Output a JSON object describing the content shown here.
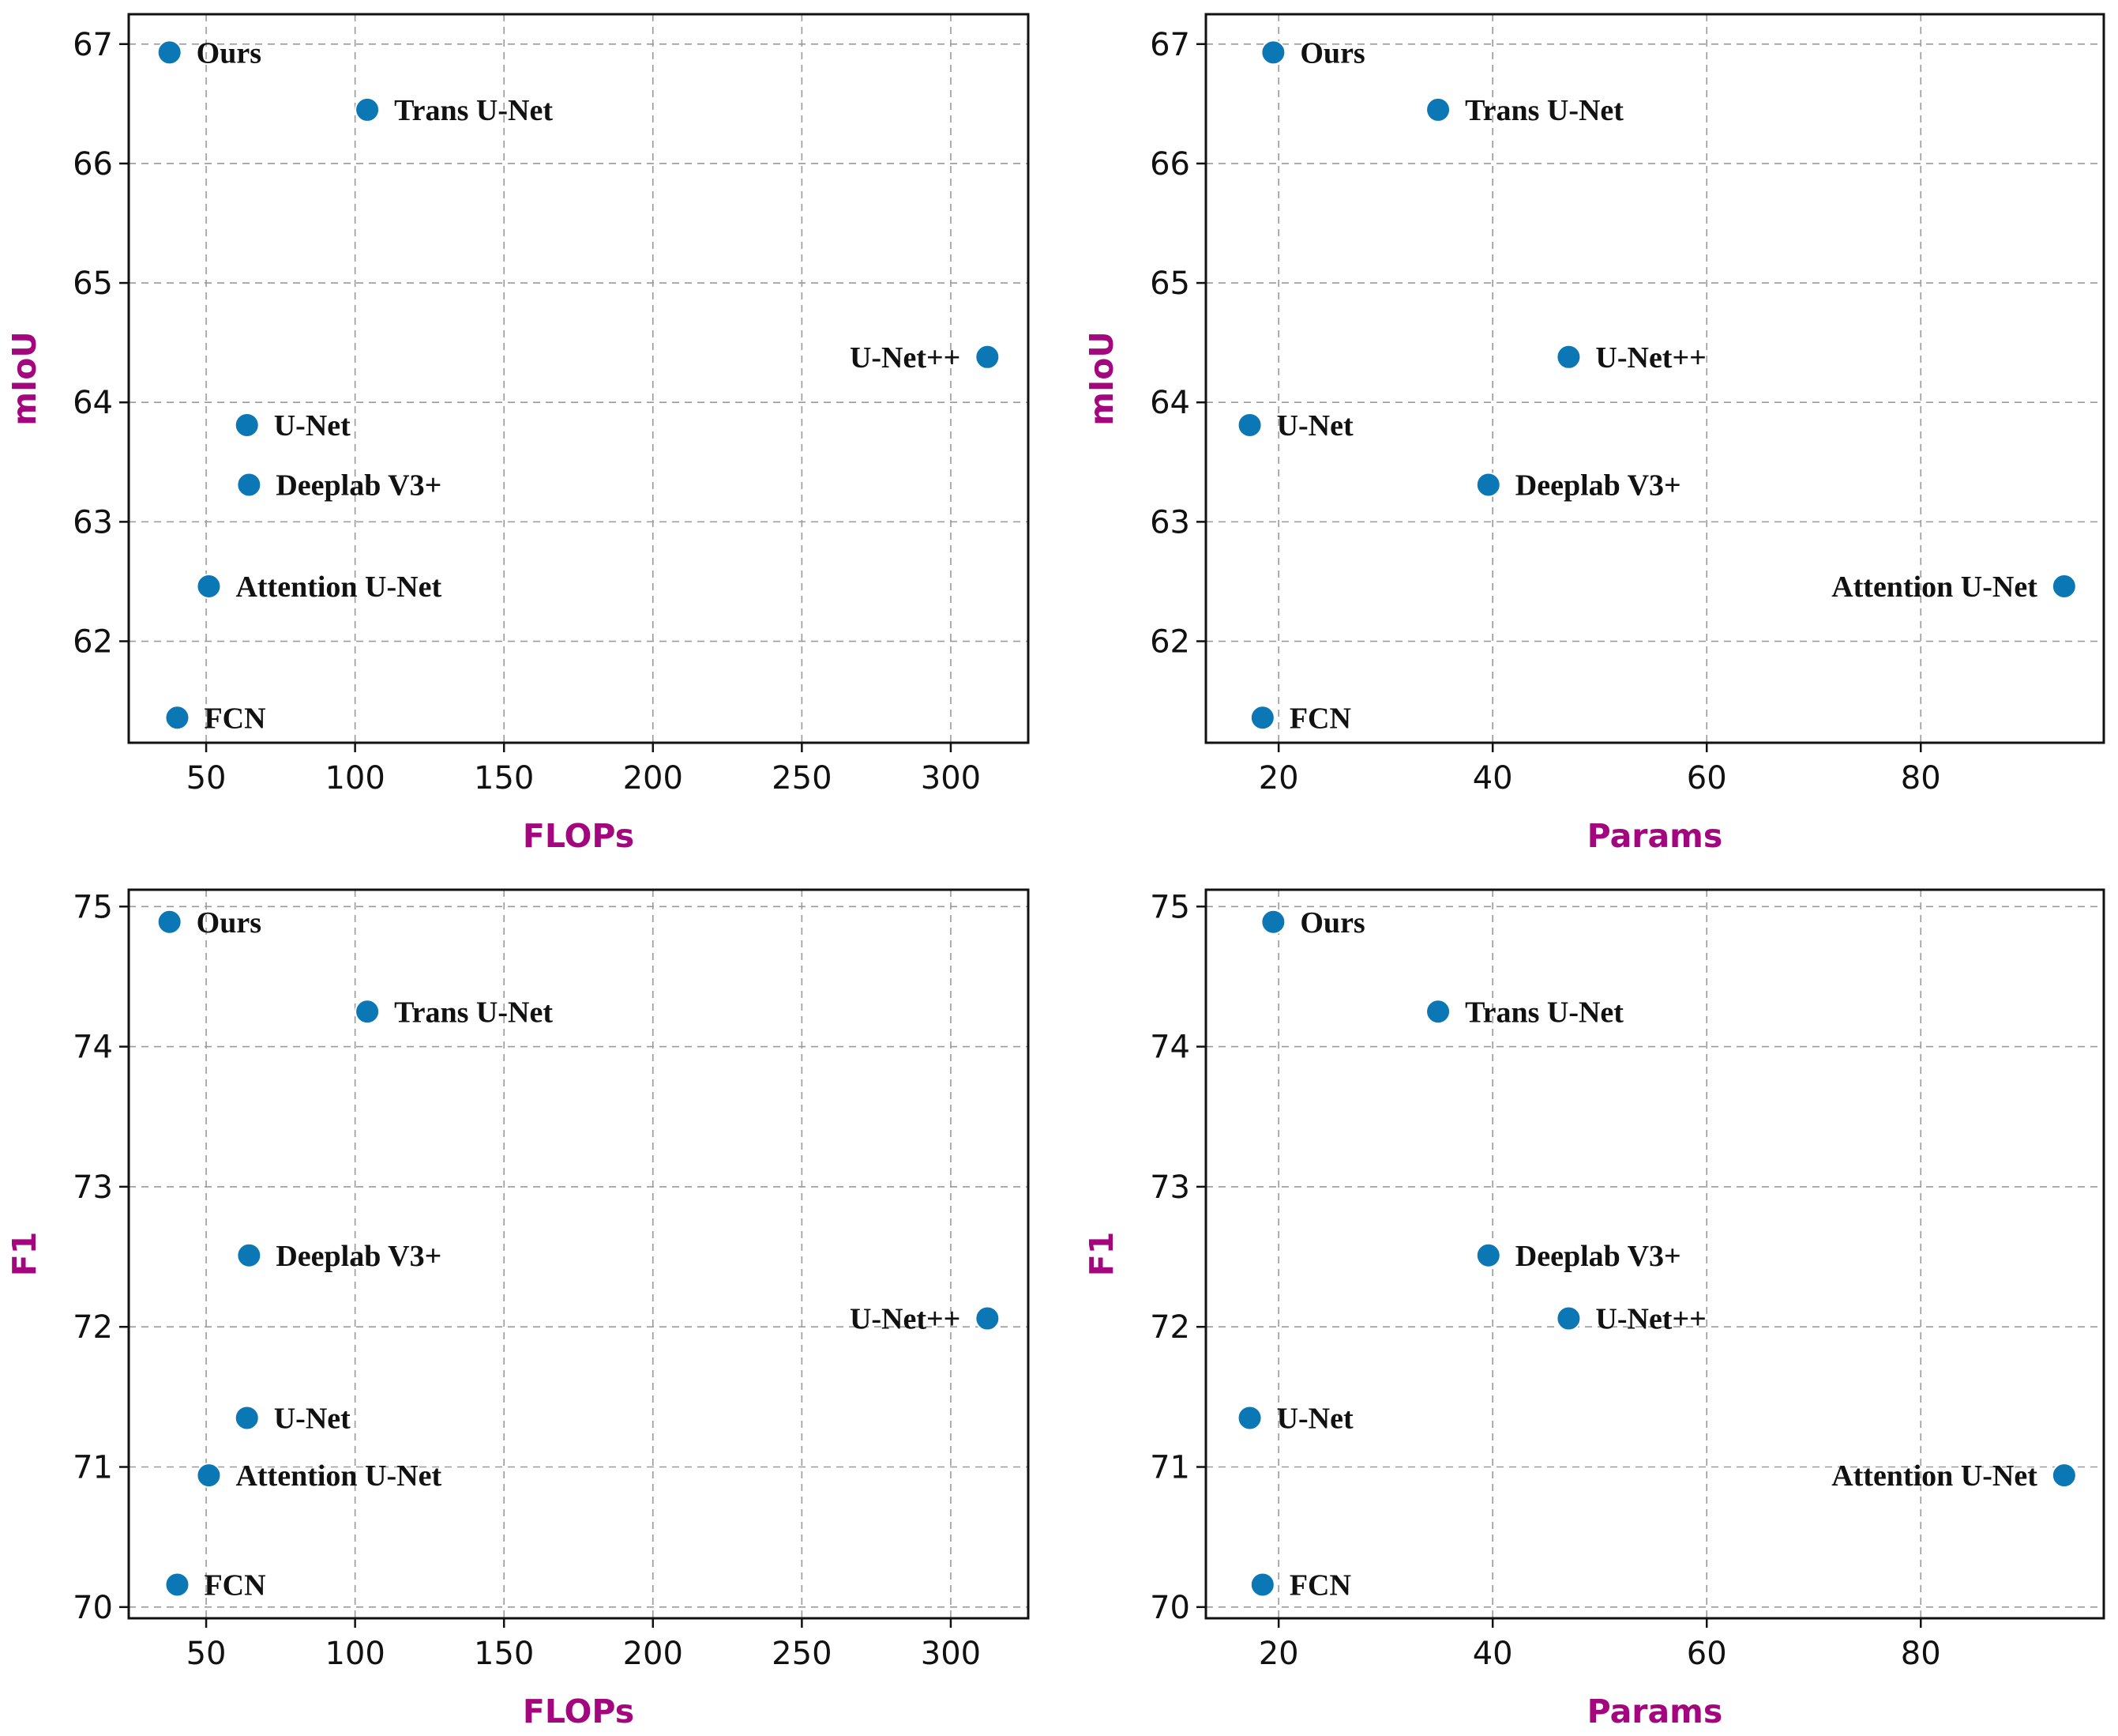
{
  "colors": {
    "point": "#0b78b5",
    "axis_label": "#a3077e",
    "grid": "#9a9a9a"
  },
  "chart_data": [
    {
      "type": "scatter",
      "position": "top-left",
      "xlabel": "FLOPs",
      "ylabel": "mIoU",
      "xlim": [
        24,
        326
      ],
      "ylim": [
        61.15,
        67.25
      ],
      "xticks": [
        50,
        100,
        150,
        200,
        250,
        300
      ],
      "yticks": [
        62,
        63,
        64,
        65,
        66,
        67
      ],
      "grid": true,
      "points": [
        {
          "label": "Ours",
          "x": 37.7,
          "y": 66.93,
          "label_side": "right"
        },
        {
          "label": "Trans U-Net",
          "x": 104.1,
          "y": 66.45,
          "label_side": "right"
        },
        {
          "label": "U-Net++",
          "x": 312.3,
          "y": 64.38,
          "label_side": "left"
        },
        {
          "label": "U-Net",
          "x": 63.7,
          "y": 63.81,
          "label_side": "right"
        },
        {
          "label": "Deeplab V3+",
          "x": 64.4,
          "y": 63.31,
          "label_side": "right"
        },
        {
          "label": "Attention U-Net",
          "x": 50.9,
          "y": 62.46,
          "label_side": "right"
        },
        {
          "label": "FCN",
          "x": 40.3,
          "y": 61.36,
          "label_side": "right"
        }
      ]
    },
    {
      "type": "scatter",
      "position": "top-right",
      "xlabel": "Params",
      "ylabel": "mIoU",
      "xlim": [
        13.2,
        97.1
      ],
      "ylim": [
        61.15,
        67.25
      ],
      "xticks": [
        20,
        40,
        60,
        80
      ],
      "yticks": [
        62,
        63,
        64,
        65,
        66,
        67
      ],
      "grid": true,
      "points": [
        {
          "label": "Ours",
          "x": 19.5,
          "y": 66.93,
          "label_side": "right"
        },
        {
          "label": "Trans U-Net",
          "x": 34.9,
          "y": 66.45,
          "label_side": "right"
        },
        {
          "label": "U-Net++",
          "x": 47.1,
          "y": 64.38,
          "label_side": "right"
        },
        {
          "label": "U-Net",
          "x": 17.3,
          "y": 63.81,
          "label_side": "right"
        },
        {
          "label": "Deeplab V3+",
          "x": 39.6,
          "y": 63.31,
          "label_side": "right"
        },
        {
          "label": "Attention U-Net",
          "x": 93.4,
          "y": 62.46,
          "label_side": "left"
        },
        {
          "label": "FCN",
          "x": 18.5,
          "y": 61.36,
          "label_side": "right"
        }
      ]
    },
    {
      "type": "scatter",
      "position": "bottom-left",
      "xlabel": "FLOPs",
      "ylabel": "F1",
      "xlim": [
        24,
        326
      ],
      "ylim": [
        69.92,
        75.12
      ],
      "xticks": [
        50,
        100,
        150,
        200,
        250,
        300
      ],
      "yticks": [
        70,
        71,
        72,
        73,
        74,
        75
      ],
      "grid": true,
      "points": [
        {
          "label": "Ours",
          "x": 37.7,
          "y": 74.89,
          "label_side": "right"
        },
        {
          "label": "Trans U-Net",
          "x": 104.1,
          "y": 74.25,
          "label_side": "right"
        },
        {
          "label": "Deeplab V3+",
          "x": 64.4,
          "y": 72.51,
          "label_side": "right"
        },
        {
          "label": "U-Net++",
          "x": 312.3,
          "y": 72.06,
          "label_side": "left"
        },
        {
          "label": "U-Net",
          "x": 63.7,
          "y": 71.35,
          "label_side": "right"
        },
        {
          "label": "Attention U-Net",
          "x": 50.9,
          "y": 70.94,
          "label_side": "right"
        },
        {
          "label": "FCN",
          "x": 40.3,
          "y": 70.16,
          "label_side": "right"
        }
      ]
    },
    {
      "type": "scatter",
      "position": "bottom-right",
      "xlabel": "Params",
      "ylabel": "F1",
      "xlim": [
        13.2,
        97.1
      ],
      "ylim": [
        69.92,
        75.12
      ],
      "xticks": [
        20,
        40,
        60,
        80
      ],
      "yticks": [
        70,
        71,
        72,
        73,
        74,
        75
      ],
      "grid": true,
      "points": [
        {
          "label": "Ours",
          "x": 19.5,
          "y": 74.89,
          "label_side": "right"
        },
        {
          "label": "Trans U-Net",
          "x": 34.9,
          "y": 74.25,
          "label_side": "right"
        },
        {
          "label": "Deeplab V3+",
          "x": 39.6,
          "y": 72.51,
          "label_side": "right"
        },
        {
          "label": "U-Net++",
          "x": 47.1,
          "y": 72.06,
          "label_side": "right"
        },
        {
          "label": "U-Net",
          "x": 17.3,
          "y": 71.35,
          "label_side": "right"
        },
        {
          "label": "Attention U-Net",
          "x": 93.4,
          "y": 70.94,
          "label_side": "left"
        },
        {
          "label": "FCN",
          "x": 18.5,
          "y": 70.16,
          "label_side": "right"
        }
      ]
    }
  ]
}
